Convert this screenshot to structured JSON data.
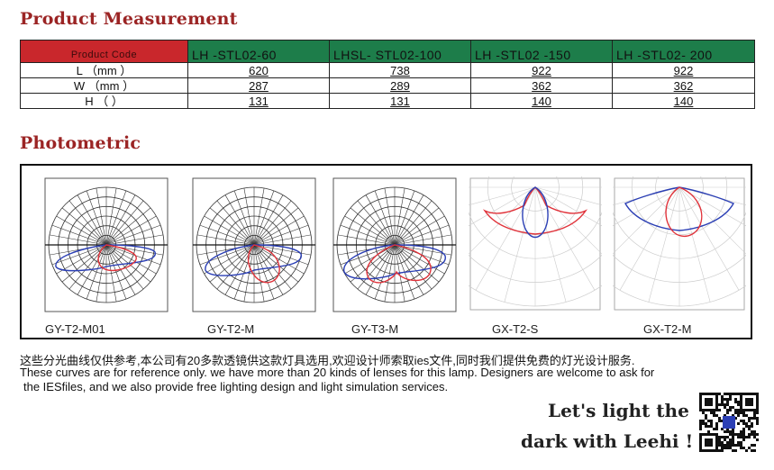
{
  "measurement": {
    "heading": "Product Measurement",
    "header": {
      "label": "Product Code",
      "codes": [
        "LH -STL02-60",
        "LHSL- STL02-100",
        "LH -STL02 -150",
        "LH -STL02- 200"
      ]
    },
    "rows": [
      {
        "label": "L （mm ）",
        "values": [
          "620",
          "738",
          "922",
          "922"
        ]
      },
      {
        "label": "W （mm ）",
        "values": [
          "287",
          "289",
          "362",
          "362"
        ]
      },
      {
        "label": "H （ ）",
        "values": [
          "131",
          "131",
          "140",
          "140"
        ]
      }
    ],
    "colors": {
      "header_red": "#c9272c",
      "header_green": "#1d7d4a"
    }
  },
  "photometric": {
    "heading": "Photometric",
    "plots": [
      {
        "label": "GY-T2-M01",
        "style": "polar-grid"
      },
      {
        "label": "GY-T2-M",
        "style": "polar-grid"
      },
      {
        "label": "GY-T3-M",
        "style": "polar-grid"
      },
      {
        "label": "GX-T2-S",
        "style": "light-grid"
      },
      {
        "label": "GX-T2-M",
        "style": "light-grid"
      }
    ],
    "curve_colors": {
      "c0": "#2b3fb5",
      "c90": "#e0323a"
    }
  },
  "notes": {
    "chinese": "这些分光曲线仅供参考,本公司有20多款透镜供这款灯具选用,欢迎设计师索取ies文件,同时我们提供免费的灯光设计服务.",
    "english_1": "These curves are for reference only. we have more than 20 kinds of lenses for this lamp. Designers are welcome to ask for",
    "english_2": "the IESfiles, and we also provide free lighting design and light simulation services."
  },
  "slogan": {
    "line1": "Let's light the",
    "line2": "dark with Leehi !"
  },
  "qr_icon": "qr-code-icon"
}
